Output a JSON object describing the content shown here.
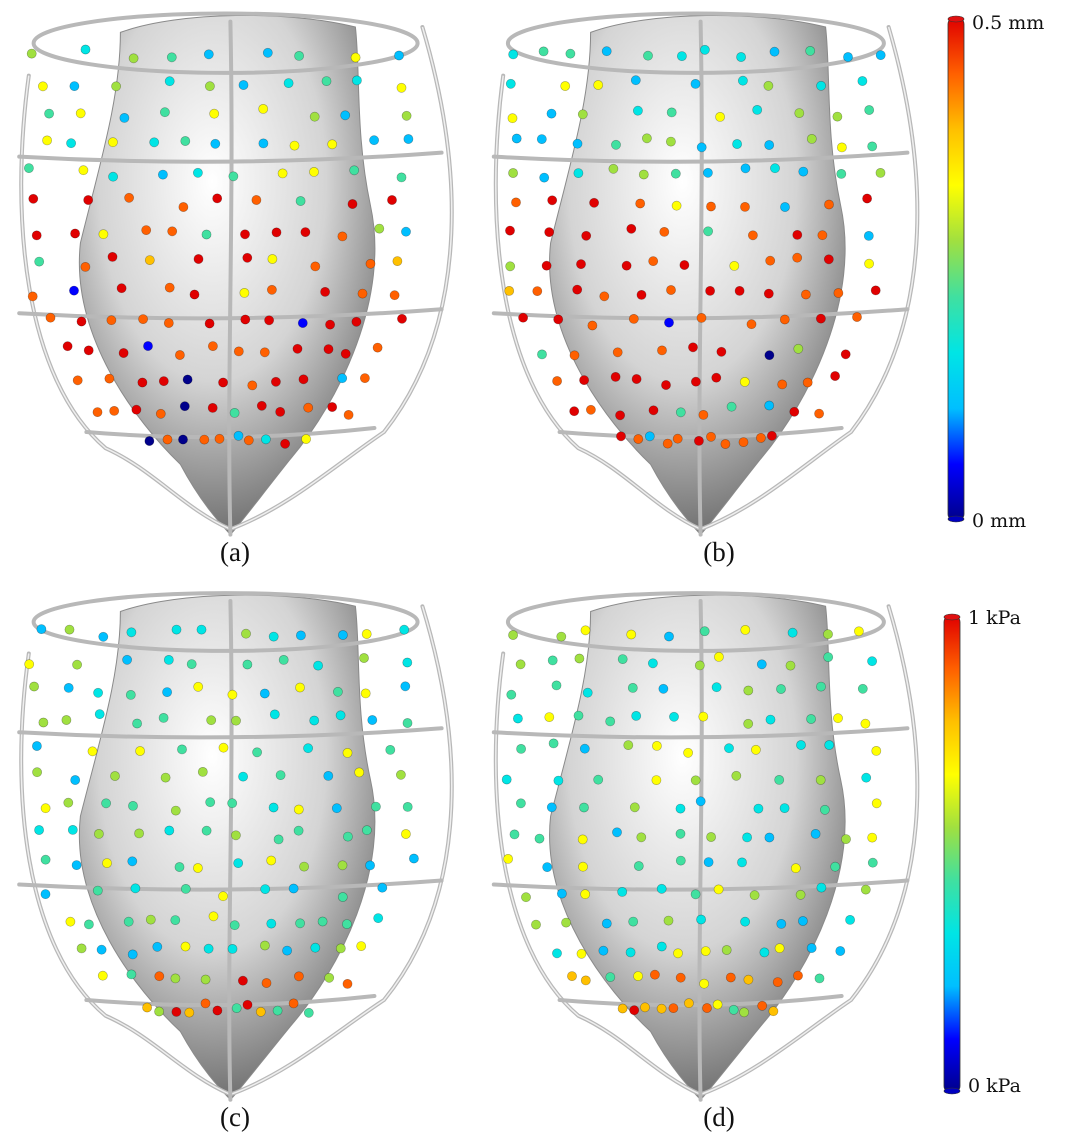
{
  "figure": {
    "panels": [
      {
        "id": "a",
        "label": "(a)",
        "field": "displacement",
        "style": "front-mixed"
      },
      {
        "id": "b",
        "label": "(b)",
        "field": "displacement",
        "style": "side-mixed"
      },
      {
        "id": "c",
        "label": "(c)",
        "field": "stress",
        "style": "front-cool"
      },
      {
        "id": "d",
        "label": "(d)",
        "field": "stress",
        "style": "side-cool"
      }
    ],
    "colorbars": [
      {
        "id": "displacement",
        "max_label": "0.5 mm",
        "min_label": "0 mm"
      },
      {
        "id": "stress",
        "max_label": "1 kPa",
        "min_label": "0 kPa"
      }
    ],
    "colors": {
      "colormap": [
        "#00008b",
        "#0000ff",
        "#00bfff",
        "#00e5e5",
        "#40e0a0",
        "#a0e040",
        "#ffff00",
        "#ffc000",
        "#ff6000",
        "#e00000"
      ],
      "cage_stroke": "#b8b8b8",
      "surface_light": "#ffffff",
      "surface_dark": "#6a6a6a"
    }
  }
}
